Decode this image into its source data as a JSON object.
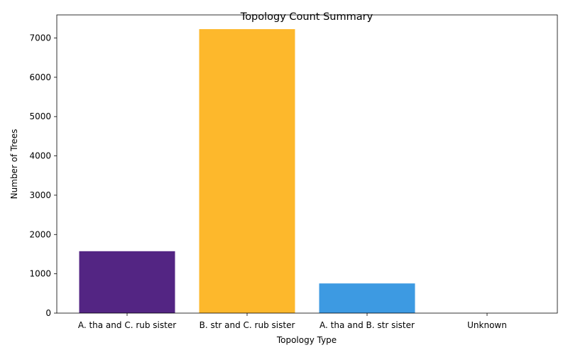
{
  "chart_data": {
    "type": "bar",
    "title": "Topology Count Summary",
    "xlabel": "Topology Type",
    "ylabel": "Number of Trees",
    "categories": [
      "A. tha and C. rub sister",
      "B. str and C. rub sister",
      "A. tha and B. str sister",
      "Unknown"
    ],
    "values": [
      1575,
      7225,
      755,
      0
    ],
    "colors": [
      "#532583",
      "#FDB82C",
      "#3D9AE2",
      "#000000"
    ],
    "ylim": [
      0,
      7587
    ],
    "yticks": [
      0,
      1000,
      2000,
      3000,
      4000,
      5000,
      6000,
      7000
    ],
    "grid": false,
    "legend": "none"
  }
}
